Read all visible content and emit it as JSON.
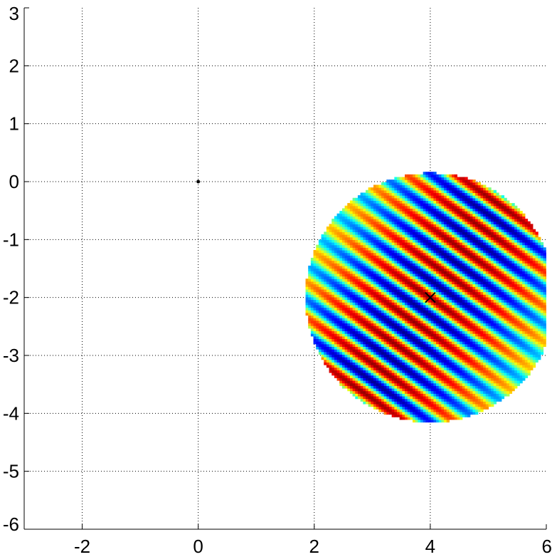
{
  "chart_data": {
    "type": "heatmap",
    "title": "",
    "xlabel": "",
    "ylabel": "",
    "xlim": [
      -3,
      6
    ],
    "ylim": [
      -6,
      3
    ],
    "grid": true,
    "x_ticks": [
      -2,
      0,
      2,
      4,
      6
    ],
    "y_ticks": [
      -6,
      -5,
      -4,
      -3,
      -2,
      -1,
      0,
      1,
      2,
      3
    ],
    "x_tick_labels": [
      "-2",
      "0",
      "2",
      "4",
      "6"
    ],
    "y_tick_labels": [
      "-6",
      "-5",
      "-4",
      "-3",
      "-2",
      "-1",
      "0",
      "1",
      "2",
      "3"
    ],
    "colormap": "jet",
    "disk": {
      "center": [
        4,
        -2
      ],
      "radius": 2.15,
      "pattern": "oblique sinusoidal stripes",
      "stripe_period": 0.5,
      "stripe_direction_deg": 55
    },
    "markers": [
      {
        "name": "origin-dot",
        "x": 0,
        "y": 0,
        "symbol": "dot",
        "color": "#000000"
      },
      {
        "name": "center-cross",
        "x": 4,
        "y": -2,
        "symbol": "x",
        "color": "#000000"
      }
    ]
  }
}
